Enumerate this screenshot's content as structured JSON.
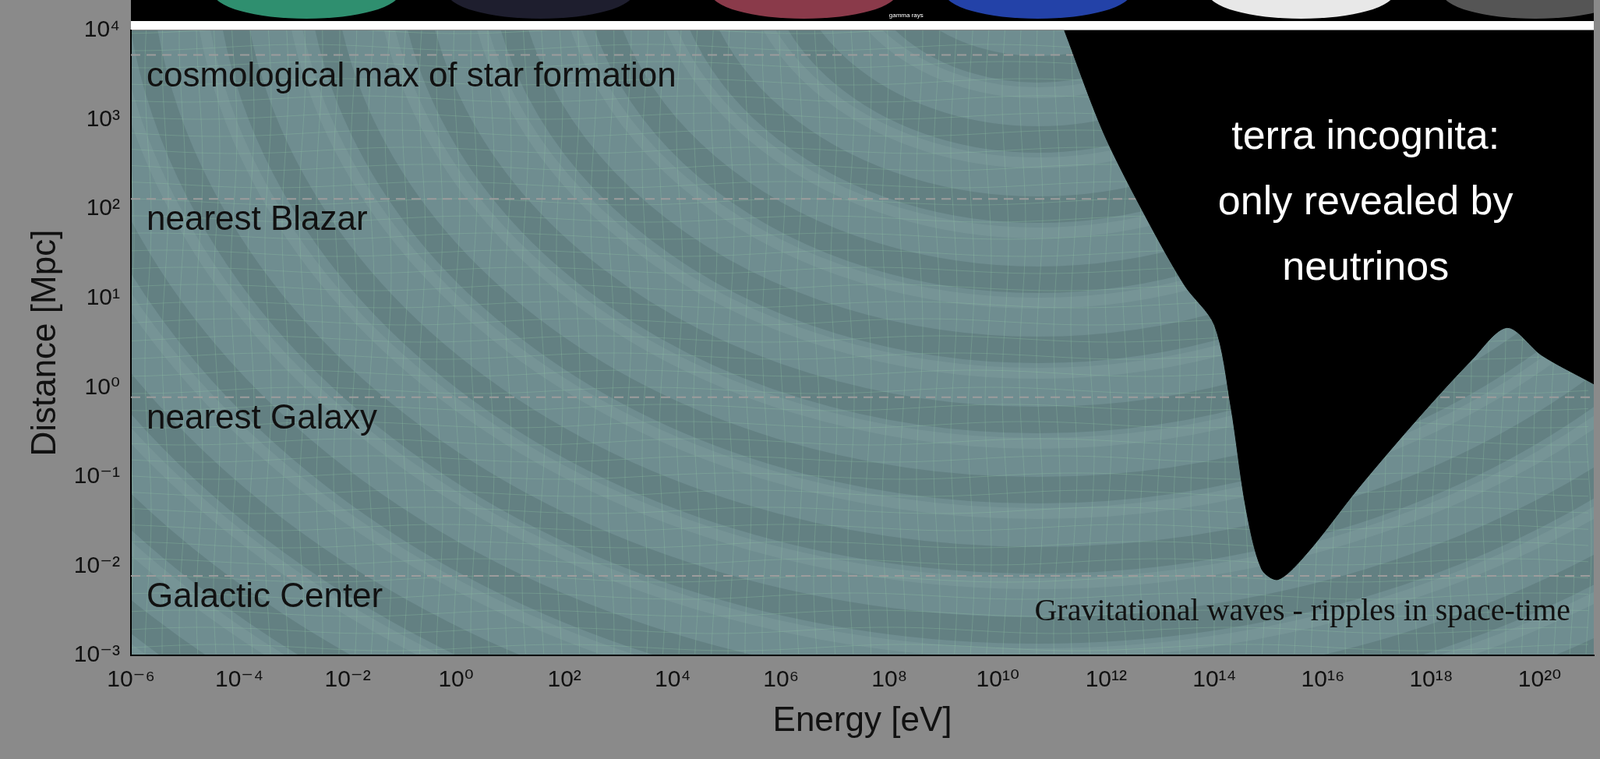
{
  "chart_data": {
    "type": "line",
    "x_label": "Energy [eV]",
    "y_label": "Distance [Mpc]",
    "log": true,
    "grid": false,
    "xlim": [
      1e-06,
      1e+21
    ],
    "ylim": [
      0.001,
      10000
    ],
    "xticks": [
      {
        "value": 1e-06,
        "label": "10⁻⁶"
      },
      {
        "value": 0.0001,
        "label": "10⁻⁴"
      },
      {
        "value": 0.01,
        "label": "10⁻²"
      },
      {
        "value": 1,
        "label": "10⁰"
      },
      {
        "value": 100.0,
        "label": "10²"
      },
      {
        "value": 10000.0,
        "label": "10⁴"
      },
      {
        "value": 1000000.0,
        "label": "10⁶"
      },
      {
        "value": 100000000.0,
        "label": "10⁸"
      },
      {
        "value": 10000000000.0,
        "label": "10¹⁰"
      },
      {
        "value": 1000000000000.0,
        "label": "10¹²"
      },
      {
        "value": 100000000000000.0,
        "label": "10¹⁴"
      },
      {
        "value": 1e+16,
        "label": "10¹⁶"
      },
      {
        "value": 1e+18,
        "label": "10¹⁸"
      },
      {
        "value": 1e+20,
        "label": "10²⁰"
      }
    ],
    "yticks": [
      {
        "value": 0.001,
        "label": "10⁻³"
      },
      {
        "value": 0.01,
        "label": "10⁻²"
      },
      {
        "value": 0.1,
        "label": "10⁻¹"
      },
      {
        "value": 1,
        "label": "10⁰"
      },
      {
        "value": 10,
        "label": "10¹"
      },
      {
        "value": 100,
        "label": "10²"
      },
      {
        "value": 1000,
        "label": "10³"
      },
      {
        "value": 10000,
        "label": "10⁴"
      }
    ],
    "reference_lines": [
      {
        "label": "Galactic Center",
        "value": 0.0078
      },
      {
        "label": "nearest Galaxy",
        "value": 0.78
      },
      {
        "label": "nearest Blazar",
        "value": 130
      },
      {
        "label": "cosmological max of star formation",
        "value": 5300
      }
    ],
    "series": [
      {
        "type": "area",
        "color": "#000000",
        "x": [
          170000000000.0,
          890000000000.0,
          5000000000000.0,
          28000000000000.0,
          100000000000000.0,
          200000000000000.0,
          380000000000000.0,
          740000000000000.0,
          1500000000000000.0,
          5100000000000000.0,
          4.6e+16,
          6e+17,
          5.4e+18,
          2.5e+19,
          1.1e+20,
          1e+21
        ],
        "values": [
          10000,
          720,
          89,
          14,
          5.0,
          0.62,
          0.045,
          0.0093,
          0.0071,
          0.014,
          0.076,
          0.47,
          2.0,
          4.7,
          2.3,
          1.1
        ]
      }
    ],
    "annotations": [
      {
        "text": [
          "terra incognita:",
          "only revealed by",
          "neutrinos"
        ],
        "color": "#ffffff"
      },
      {
        "text": "Gravitational waves - ripples in space-time",
        "color": "#111111"
      },
      {
        "text": "gamma rays",
        "color": "#ffffff"
      }
    ]
  }
}
